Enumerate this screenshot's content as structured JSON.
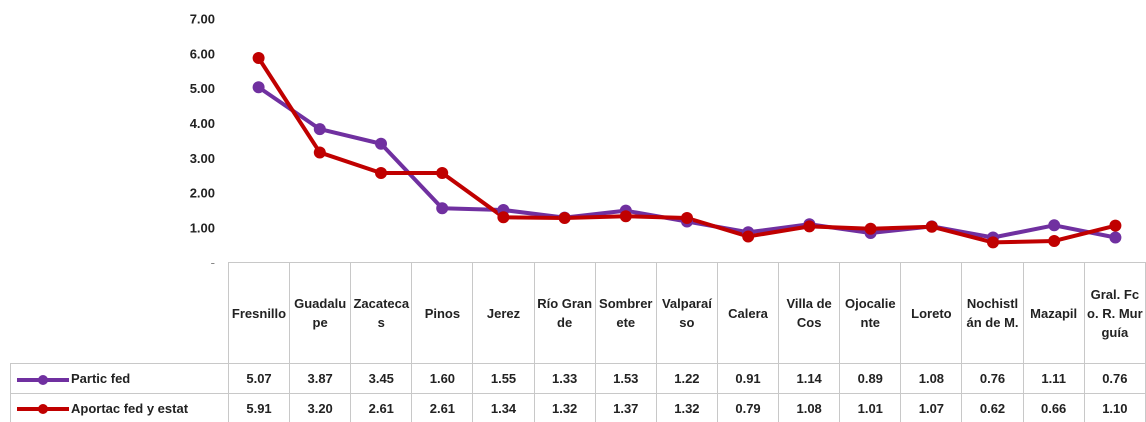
{
  "chart_data": {
    "type": "line",
    "categories": [
      "Fresnillo",
      "Guadalupe",
      "Zacatecas",
      "Pinos",
      "Jerez",
      "Río Grande",
      "Sombrerete",
      "Valparaíso",
      "Calera",
      "Villa de Cos",
      "Ojocaliente",
      "Loreto",
      "Nochistlán de M.",
      "Mazapil",
      "Gral. Fco. R. Murguía"
    ],
    "series": [
      {
        "name": "Partic fed",
        "color": "#7030a0",
        "values": [
          5.07,
          3.87,
          3.45,
          1.6,
          1.55,
          1.33,
          1.53,
          1.22,
          0.91,
          1.14,
          0.89,
          1.08,
          0.76,
          1.11,
          0.76
        ],
        "value_labels": [
          "5.07",
          "3.87",
          "3.45",
          "1.60",
          "1.55",
          "1.33",
          "1.53",
          "1.22",
          "0.91",
          "1.14",
          "0.89",
          "1.08",
          "0.76",
          "1.11",
          "0.76"
        ]
      },
      {
        "name": "Aportac fed y estat",
        "color": "#c00000",
        "values": [
          5.91,
          3.2,
          2.61,
          2.61,
          1.34,
          1.32,
          1.37,
          1.32,
          0.79,
          1.08,
          1.01,
          1.07,
          0.62,
          0.66,
          1.1
        ],
        "value_labels": [
          "5.91",
          "3.20",
          "2.61",
          "2.61",
          "1.34",
          "1.32",
          "1.37",
          "1.32",
          "0.79",
          "1.08",
          "1.01",
          "1.07",
          "0.62",
          "0.66",
          "1.10"
        ]
      }
    ],
    "ylim": [
      0,
      7
    ],
    "yticks": [
      {
        "value": 0,
        "label": "-"
      },
      {
        "value": 1,
        "label": "1.00"
      },
      {
        "value": 2,
        "label": "2.00"
      },
      {
        "value": 3,
        "label": "3.00"
      },
      {
        "value": 4,
        "label": "4.00"
      },
      {
        "value": 5,
        "label": "5.00"
      },
      {
        "value": 6,
        "label": "6.00"
      },
      {
        "value": 7,
        "label": "7.00"
      }
    ],
    "grid": false
  }
}
